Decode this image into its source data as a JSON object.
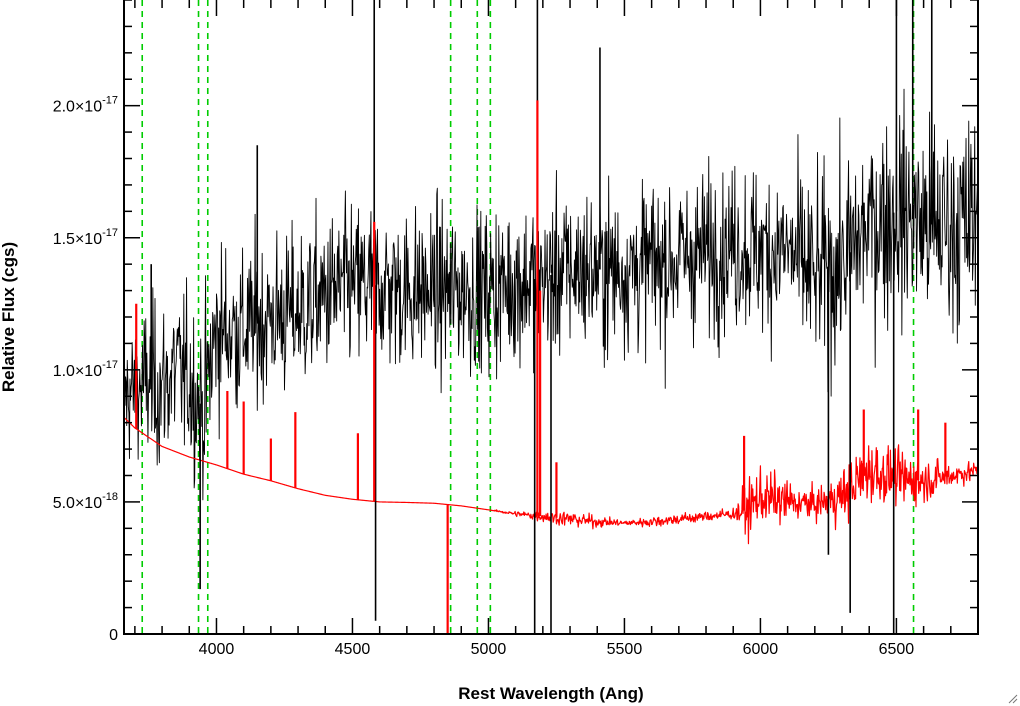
{
  "chart_data": {
    "type": "line",
    "title": "",
    "xlabel": "Rest Wavelength (Ang)",
    "ylabel": "Relative Flux (cgs)",
    "xlim": [
      3660,
      6800
    ],
    "ylim": [
      0,
      2.4e-17
    ],
    "x_ticks": [
      {
        "value": 4000,
        "label": "4000"
      },
      {
        "value": 4500,
        "label": "4500"
      },
      {
        "value": 5000,
        "label": "5000"
      },
      {
        "value": 5500,
        "label": "5500"
      },
      {
        "value": 6000,
        "label": "6000"
      },
      {
        "value": 6500,
        "label": "6500"
      }
    ],
    "y_ticks": [
      {
        "value": 0,
        "mantissa": "0",
        "exponent": ""
      },
      {
        "value": 5e-18,
        "mantissa": "5.0×10",
        "exponent": "-18"
      },
      {
        "value": 1e-17,
        "mantissa": "1.0×10",
        "exponent": "-17"
      },
      {
        "value": 1.5e-17,
        "mantissa": "1.5×10",
        "exponent": "-17"
      },
      {
        "value": 2e-17,
        "mantissa": "2.0×10",
        "exponent": "-17"
      }
    ],
    "x_minor_step": 100,
    "y_minor_step": 1e-18,
    "grid": false,
    "series": [
      {
        "color": "#000000",
        "style": "noisy spectrum",
        "x": [
          3660,
          3700,
          3750,
          3800,
          3850,
          3900,
          3950,
          4000,
          4100,
          4200,
          4300,
          4400,
          4500,
          4600,
          4700,
          4800,
          4900,
          5000,
          5100,
          5200,
          5300,
          5400,
          5500,
          5600,
          5700,
          5800,
          5900,
          6000,
          6100,
          6200,
          6300,
          6400,
          6500,
          6600,
          6700,
          6800
        ],
        "y": [
          9e-18,
          9.2e-18,
          9.5e-18,
          9.3e-18,
          1e-17,
          9.6e-18,
          8.5e-18,
          1.15e-17,
          1.15e-17,
          1.2e-17,
          1.22e-17,
          1.28e-17,
          1.32e-17,
          1.32e-17,
          1.3e-17,
          1.3e-17,
          1.3e-17,
          1.3e-17,
          1.33e-17,
          1.35e-17,
          1.38e-17,
          1.38e-17,
          1.38e-17,
          1.4e-17,
          1.42e-17,
          1.45e-17,
          1.47e-17,
          1.45e-17,
          1.45e-17,
          1.35e-17,
          1.4e-17,
          1.55e-17,
          1.6e-17,
          1.55e-17,
          1.55e-17,
          1.55e-17
        ],
        "noise": [
          2.5e-18,
          2.5e-18,
          3e-18,
          3e-18,
          3e-18,
          3e-18,
          3.2e-18,
          3.2e-18,
          3e-18,
          3e-18,
          3e-18,
          3e-18,
          3e-18,
          3e-18,
          3e-18,
          3e-18,
          3e-18,
          3e-18,
          3e-18,
          3e-18,
          3e-18,
          3e-18,
          3e-18,
          3e-18,
          3e-18,
          3e-18,
          3e-18,
          3e-18,
          3.2e-18,
          3.5e-18,
          3.5e-18,
          3.5e-18,
          4e-18,
          4e-18,
          4e-18,
          4e-18
        ]
      },
      {
        "color": "#ff0000",
        "style": "noise / error spectrum",
        "x": [
          3660,
          3700,
          3800,
          3900,
          4000,
          4100,
          4200,
          4300,
          4400,
          4500,
          4600,
          4700,
          4800,
          4900,
          5000,
          5100,
          5200,
          5300,
          5400,
          5500,
          5600,
          5700,
          5800,
          5900,
          5950,
          6000,
          6100,
          6200,
          6300,
          6400,
          6500,
          6600,
          6700,
          6800
        ],
        "y": [
          8.2e-18,
          7.8e-18,
          7.1e-18,
          6.7e-18,
          6.4e-18,
          6.05e-18,
          5.8e-18,
          5.5e-18,
          5.25e-18,
          5.1e-18,
          5e-18,
          4.98e-18,
          4.95e-18,
          4.85e-18,
          4.7e-18,
          4.55e-18,
          4.45e-18,
          4.35e-18,
          4.25e-18,
          4.2e-18,
          4.25e-18,
          4.35e-18,
          4.45e-18,
          4.55e-18,
          4.7e-18,
          5.2e-18,
          5e-18,
          4.9e-18,
          5.2e-18,
          6.2e-18,
          5.9e-18,
          5.8e-18,
          6e-18,
          6.2e-18
        ],
        "noise": [
          0,
          0,
          0,
          0,
          0,
          0,
          0,
          0,
          0,
          0,
          0,
          0,
          0,
          0,
          0,
          1e-19,
          2e-19,
          3e-19,
          2e-19,
          1e-19,
          2e-19,
          2e-19,
          2e-19,
          2e-19,
          1e-18,
          1e-18,
          8e-19,
          5e-19,
          1e-18,
          1.2e-18,
          1e-18,
          8e-19,
          5e-19,
          3e-19
        ]
      }
    ],
    "spikes": [
      {
        "series": 0,
        "x": 3760,
        "y": 1.4e-17
      },
      {
        "series": 0,
        "x": 3940,
        "y": 1.7e-18
      },
      {
        "series": 0,
        "x": 4150,
        "y": 1.85e-17
      },
      {
        "series": 0,
        "x": 4580,
        "y": 2.5e-17
      },
      {
        "series": 0,
        "x": 4585,
        "y": 5e-19
      },
      {
        "series": 0,
        "x": 5180,
        "y": 2.5e-17
      },
      {
        "series": 0,
        "x": 5170,
        "y": 0
      },
      {
        "series": 0,
        "x": 5230,
        "y": 0
      },
      {
        "series": 0,
        "x": 5410,
        "y": 2.22e-17
      },
      {
        "series": 0,
        "x": 6250,
        "y": 3e-18
      },
      {
        "series": 0,
        "x": 6330,
        "y": 8e-19
      },
      {
        "series": 0,
        "x": 6490,
        "y": 0
      },
      {
        "series": 0,
        "x": 6500,
        "y": 2.5e-17
      },
      {
        "series": 0,
        "x": 6560,
        "y": 2.5e-17
      },
      {
        "series": 0,
        "x": 6630,
        "y": 2.5e-17
      },
      {
        "series": 1,
        "x": 3705,
        "y": 1.25e-17
      },
      {
        "series": 1,
        "x": 4040,
        "y": 9.2e-18
      },
      {
        "series": 1,
        "x": 4100,
        "y": 8.8e-18
      },
      {
        "series": 1,
        "x": 4200,
        "y": 7.4e-18
      },
      {
        "series": 1,
        "x": 4290,
        "y": 8.4e-18
      },
      {
        "series": 1,
        "x": 4520,
        "y": 7.6e-18
      },
      {
        "series": 1,
        "x": 4580,
        "y": 1.56e-17
      },
      {
        "series": 1,
        "x": 4850,
        "y": 0
      },
      {
        "series": 1,
        "x": 5180,
        "y": 2.02e-17
      },
      {
        "series": 1,
        "x": 5190,
        "y": 1.3e-17
      },
      {
        "series": 1,
        "x": 5250,
        "y": 6.5e-18
      },
      {
        "series": 1,
        "x": 5940,
        "y": 7.5e-18
      },
      {
        "series": 1,
        "x": 6380,
        "y": 8.5e-18
      },
      {
        "series": 1,
        "x": 6580,
        "y": 8.5e-18
      },
      {
        "series": 1,
        "x": 6680,
        "y": 8e-18
      }
    ],
    "vertical_lines": [
      {
        "x": 3727,
        "color": "#00cc00",
        "style": "dashed"
      },
      {
        "x": 3934,
        "color": "#00cc00",
        "style": "dashed"
      },
      {
        "x": 3968,
        "color": "#00cc00",
        "style": "dashed"
      },
      {
        "x": 4861,
        "color": "#00cc00",
        "style": "dashed"
      },
      {
        "x": 4959,
        "color": "#00cc00",
        "style": "dashed"
      },
      {
        "x": 5007,
        "color": "#00cc00",
        "style": "dashed"
      },
      {
        "x": 6563,
        "color": "#00cc00",
        "style": "dashed"
      }
    ]
  }
}
